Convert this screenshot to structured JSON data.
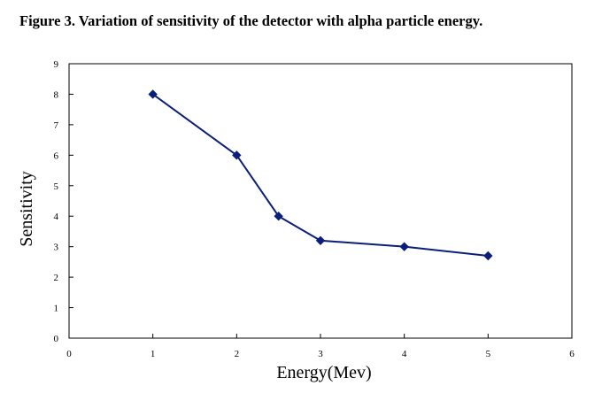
{
  "caption": "Figure 3. Variation of sensitivity of the detector with alpha particle energy.",
  "chart_data": {
    "type": "line",
    "title": "",
    "xlabel": "Energy(Mev)",
    "ylabel": "Sensitivity",
    "xlim": [
      0,
      6
    ],
    "ylim": [
      0,
      9
    ],
    "x_ticks": [
      0,
      1,
      2,
      3,
      4,
      5,
      6
    ],
    "y_ticks": [
      0,
      1,
      2,
      3,
      4,
      5,
      6,
      7,
      8,
      9
    ],
    "grid": false,
    "legend": "none",
    "series": [
      {
        "x": [
          1,
          2,
          2.5,
          3,
          4,
          5
        ],
        "y": [
          8,
          6,
          4,
          3.2,
          3,
          2.7
        ],
        "color": "#0b1f7a",
        "marker": "diamond"
      }
    ]
  }
}
